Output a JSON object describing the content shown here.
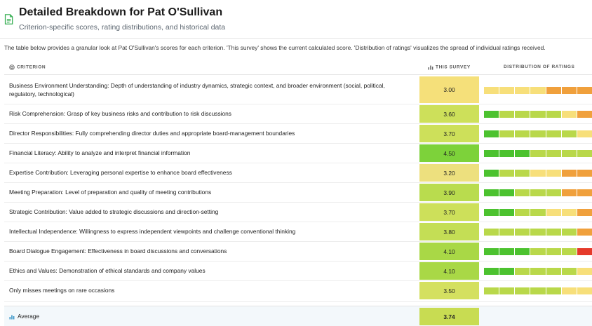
{
  "header": {
    "title": "Detailed Breakdown for Pat O'Sullivan",
    "subtitle": "Criterion-specific scores, rating distributions, and historical data"
  },
  "description": "The table below provides a granular look at Pat O'Sullivan's scores for each criterion. 'This survey' shows the current calculated score. 'Distribution of ratings' visualizes the spread of individual ratings received.",
  "table": {
    "columns": {
      "criterion": "Criterion",
      "this_survey": "This Survey",
      "distribution": "Distribution of Ratings"
    },
    "rows": [
      {
        "criterion": "Business Environment Understanding: Depth of understanding of industry dynamics, strategic context, and broader environment (social, political, regulatory, technological)",
        "score": "3.00",
        "score_color": "#f5e07a",
        "distribution": [
          2,
          2,
          2,
          2,
          1,
          1,
          1
        ]
      },
      {
        "criterion": "Risk Comprehension: Grasp of key business risks and contribution to risk discussions",
        "score": "3.60",
        "score_color": "#cde05a",
        "distribution": [
          4,
          3,
          3,
          3,
          3,
          2,
          1
        ]
      },
      {
        "criterion": "Director Responsibilities: Fully comprehending director duties and appropriate board-management boundaries",
        "score": "3.70",
        "score_color": "#cde05a",
        "distribution": [
          4,
          3,
          3,
          3,
          3,
          3,
          2
        ]
      },
      {
        "criterion": "Financial Literacy: Ability to analyze and interpret financial information",
        "score": "4.50",
        "score_color": "#7dd23a",
        "distribution": [
          4,
          4,
          4,
          3,
          3,
          3,
          3
        ]
      },
      {
        "criterion": "Expertise Contribution: Leveraging personal expertise to enhance board effectiveness",
        "score": "3.20",
        "score_color": "#ede07e",
        "distribution": [
          4,
          3,
          3,
          2,
          2,
          1,
          1
        ]
      },
      {
        "criterion": "Meeting Preparation: Level of preparation and quality of meeting contributions",
        "score": "3.90",
        "score_color": "#b9dc4e",
        "distribution": [
          4,
          4,
          3,
          3,
          3,
          1,
          1
        ]
      },
      {
        "criterion": "Strategic Contribution: Value added to strategic discussions and direction-setting",
        "score": "3.70",
        "score_color": "#cde05a",
        "distribution": [
          4,
          4,
          3,
          3,
          2,
          2,
          1
        ]
      },
      {
        "criterion": "Intellectual Independence: Willingness to express independent viewpoints and challenge conventional thinking",
        "score": "3.80",
        "score_color": "#c4de55",
        "distribution": [
          3,
          3,
          3,
          3,
          3,
          3,
          1
        ]
      },
      {
        "criterion": "Board Dialogue Engagement: Effectiveness in board discussions and conversations",
        "score": "4.10",
        "score_color": "#a9d846",
        "distribution": [
          4,
          4,
          4,
          3,
          3,
          3,
          0
        ]
      },
      {
        "criterion": "Ethics and Values: Demonstration of ethical standards and company values",
        "score": "4.10",
        "score_color": "#a9d846",
        "distribution": [
          4,
          4,
          3,
          3,
          3,
          3,
          2
        ]
      },
      {
        "criterion": "Only misses meetings on rare occasions",
        "score": "3.50",
        "score_color": "#d4e060",
        "distribution": [
          3,
          3,
          3,
          3,
          3,
          2,
          2
        ]
      }
    ],
    "average": {
      "label": "Average",
      "score": "3.74",
      "score_color": "#c8dc52"
    }
  },
  "rating_colors": [
    "#e53a2a",
    "#f0a03c",
    "#f7df7a",
    "#b9d84a",
    "#4cc22f"
  ]
}
